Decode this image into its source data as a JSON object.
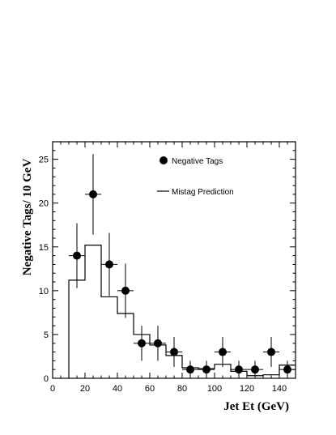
{
  "chart_data": {
    "type": "scatter",
    "title": "",
    "xlabel": "Jet Et (GeV)",
    "ylabel": "Negative Tags/ 10 GeV",
    "xlim": [
      0,
      150
    ],
    "ylim": [
      0,
      27
    ],
    "xticks": [
      0,
      20,
      40,
      60,
      80,
      100,
      120,
      140
    ],
    "yticks": [
      0,
      5,
      10,
      15,
      20,
      25
    ],
    "grid": false,
    "legend_position": "top-right",
    "series": [
      {
        "name": "Negative Tags",
        "style": "points-with-errorbars",
        "x": [
          15,
          25,
          35,
          45,
          55,
          65,
          75,
          85,
          95,
          105,
          115,
          125,
          135,
          145
        ],
        "xerr": 5,
        "y": [
          14,
          21,
          13,
          10,
          4,
          4,
          3,
          1,
          1,
          3,
          1,
          1,
          3,
          1
        ],
        "yerr_low": [
          3.7,
          4.6,
          3.6,
          3.1,
          2.0,
          2.0,
          1.7,
          1.0,
          1.0,
          1.7,
          1.0,
          1.0,
          1.7,
          1.0
        ],
        "yerr_high": [
          3.7,
          4.6,
          3.6,
          3.1,
          2.0,
          2.0,
          1.7,
          1.0,
          1.0,
          1.7,
          1.0,
          1.0,
          1.7,
          1.0
        ]
      },
      {
        "name": "Mistag Prediction",
        "style": "step-histogram",
        "bin_edges": [
          10,
          20,
          30,
          40,
          50,
          60,
          70,
          80,
          90,
          100,
          110,
          120,
          130,
          140,
          150
        ],
        "values": [
          11.2,
          15.2,
          9.3,
          7.4,
          5.0,
          3.8,
          2.6,
          1.2,
          1.1,
          1.6,
          0.8,
          0.3,
          0.4,
          1.5
        ]
      }
    ],
    "colors": {
      "foreground": "#000000",
      "background": "#ffffff"
    }
  }
}
